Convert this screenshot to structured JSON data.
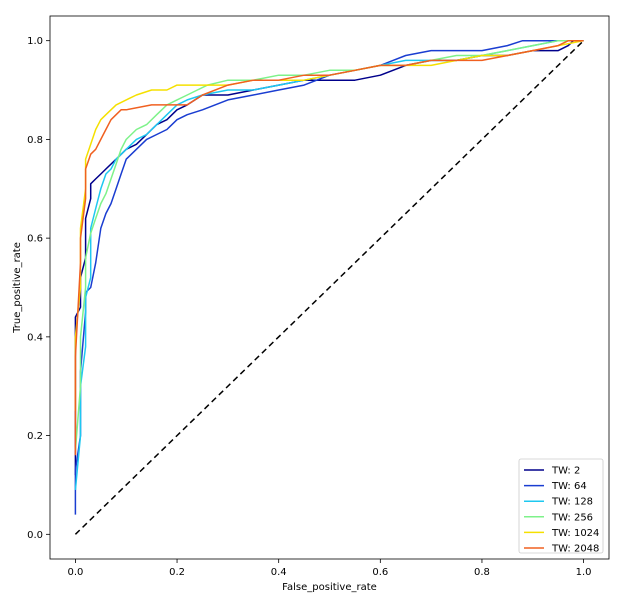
{
  "chart_data": {
    "type": "line",
    "xlabel": "False_positive_rate",
    "ylabel": "True_positive_rate",
    "xlim": [
      -0.05,
      1.05
    ],
    "ylim": [
      -0.05,
      1.05
    ],
    "xticks": [
      "0.0",
      "0.2",
      "0.4",
      "0.6",
      "0.8",
      "1.0"
    ],
    "yticks": [
      "0.0",
      "0.2",
      "0.4",
      "0.6",
      "0.8",
      "1.0"
    ],
    "grid": false,
    "legend_position": "lower right",
    "diagonal": {
      "style": "dashed",
      "color": "#000000",
      "points": [
        [
          0,
          0
        ],
        [
          1,
          1
        ]
      ]
    },
    "series": [
      {
        "name": "TW: 2",
        "color": "#00008b",
        "points": [
          [
            0,
            0.12
          ],
          [
            0,
            0.44
          ],
          [
            0.01,
            0.46
          ],
          [
            0.01,
            0.52
          ],
          [
            0.02,
            0.56
          ],
          [
            0.02,
            0.64
          ],
          [
            0.03,
            0.68
          ],
          [
            0.03,
            0.71
          ],
          [
            0.04,
            0.72
          ],
          [
            0.05,
            0.73
          ],
          [
            0.06,
            0.74
          ],
          [
            0.08,
            0.76
          ],
          [
            0.1,
            0.78
          ],
          [
            0.12,
            0.79
          ],
          [
            0.14,
            0.81
          ],
          [
            0.16,
            0.83
          ],
          [
            0.18,
            0.84
          ],
          [
            0.2,
            0.86
          ],
          [
            0.22,
            0.87
          ],
          [
            0.25,
            0.89
          ],
          [
            0.3,
            0.89
          ],
          [
            0.35,
            0.9
          ],
          [
            0.4,
            0.91
          ],
          [
            0.45,
            0.92
          ],
          [
            0.5,
            0.92
          ],
          [
            0.55,
            0.92
          ],
          [
            0.6,
            0.93
          ],
          [
            0.65,
            0.95
          ],
          [
            0.7,
            0.96
          ],
          [
            0.75,
            0.96
          ],
          [
            0.8,
            0.97
          ],
          [
            0.85,
            0.97
          ],
          [
            0.9,
            0.98
          ],
          [
            0.95,
            0.98
          ],
          [
            0.97,
            0.99
          ],
          [
            0.98,
            1.0
          ],
          [
            1.0,
            1.0
          ]
        ]
      },
      {
        "name": "TW: 64",
        "color": "#1a3dd1",
        "points": [
          [
            0,
            0.04
          ],
          [
            0,
            0.13
          ],
          [
            0.01,
            0.2
          ],
          [
            0.01,
            0.33
          ],
          [
            0.02,
            0.45
          ],
          [
            0.02,
            0.49
          ],
          [
            0.03,
            0.5
          ],
          [
            0.04,
            0.55
          ],
          [
            0.05,
            0.62
          ],
          [
            0.06,
            0.65
          ],
          [
            0.07,
            0.67
          ],
          [
            0.08,
            0.7
          ],
          [
            0.09,
            0.73
          ],
          [
            0.1,
            0.76
          ],
          [
            0.12,
            0.78
          ],
          [
            0.14,
            0.8
          ],
          [
            0.16,
            0.81
          ],
          [
            0.18,
            0.82
          ],
          [
            0.2,
            0.84
          ],
          [
            0.22,
            0.85
          ],
          [
            0.25,
            0.86
          ],
          [
            0.3,
            0.88
          ],
          [
            0.35,
            0.89
          ],
          [
            0.4,
            0.9
          ],
          [
            0.45,
            0.91
          ],
          [
            0.5,
            0.93
          ],
          [
            0.55,
            0.94
          ],
          [
            0.6,
            0.95
          ],
          [
            0.65,
            0.97
          ],
          [
            0.7,
            0.98
          ],
          [
            0.75,
            0.98
          ],
          [
            0.8,
            0.98
          ],
          [
            0.85,
            0.99
          ],
          [
            0.88,
            1.0
          ],
          [
            1.0,
            1.0
          ]
        ]
      },
      {
        "name": "TW: 128",
        "color": "#1ec8f0",
        "points": [
          [
            0,
            0.09
          ],
          [
            0.01,
            0.2
          ],
          [
            0.01,
            0.3
          ],
          [
            0.02,
            0.38
          ],
          [
            0.02,
            0.48
          ],
          [
            0.03,
            0.52
          ],
          [
            0.03,
            0.62
          ],
          [
            0.04,
            0.66
          ],
          [
            0.05,
            0.7
          ],
          [
            0.06,
            0.73
          ],
          [
            0.07,
            0.74
          ],
          [
            0.08,
            0.76
          ],
          [
            0.1,
            0.78
          ],
          [
            0.12,
            0.8
          ],
          [
            0.14,
            0.81
          ],
          [
            0.16,
            0.83
          ],
          [
            0.18,
            0.85
          ],
          [
            0.2,
            0.87
          ],
          [
            0.22,
            0.88
          ],
          [
            0.25,
            0.89
          ],
          [
            0.3,
            0.9
          ],
          [
            0.35,
            0.9
          ],
          [
            0.4,
            0.91
          ],
          [
            0.45,
            0.92
          ],
          [
            0.5,
            0.93
          ],
          [
            0.55,
            0.94
          ],
          [
            0.6,
            0.95
          ],
          [
            0.65,
            0.96
          ],
          [
            0.7,
            0.96
          ],
          [
            0.75,
            0.96
          ],
          [
            0.8,
            0.97
          ],
          [
            0.85,
            0.98
          ],
          [
            0.9,
            0.99
          ],
          [
            0.95,
            1.0
          ],
          [
            1.0,
            1.0
          ]
        ]
      },
      {
        "name": "TW: 256",
        "color": "#7ef28a",
        "points": [
          [
            0,
            0.17
          ],
          [
            0.01,
            0.3
          ],
          [
            0.01,
            0.4
          ],
          [
            0.02,
            0.5
          ],
          [
            0.02,
            0.56
          ],
          [
            0.03,
            0.61
          ],
          [
            0.04,
            0.64
          ],
          [
            0.05,
            0.67
          ],
          [
            0.06,
            0.69
          ],
          [
            0.07,
            0.72
          ],
          [
            0.08,
            0.75
          ],
          [
            0.09,
            0.78
          ],
          [
            0.1,
            0.8
          ],
          [
            0.12,
            0.82
          ],
          [
            0.14,
            0.83
          ],
          [
            0.16,
            0.85
          ],
          [
            0.18,
            0.87
          ],
          [
            0.2,
            0.88
          ],
          [
            0.22,
            0.89
          ],
          [
            0.24,
            0.9
          ],
          [
            0.26,
            0.91
          ],
          [
            0.3,
            0.92
          ],
          [
            0.35,
            0.92
          ],
          [
            0.4,
            0.93
          ],
          [
            0.45,
            0.93
          ],
          [
            0.5,
            0.94
          ],
          [
            0.55,
            0.94
          ],
          [
            0.6,
            0.95
          ],
          [
            0.65,
            0.95
          ],
          [
            0.7,
            0.96
          ],
          [
            0.75,
            0.97
          ],
          [
            0.8,
            0.97
          ],
          [
            0.85,
            0.98
          ],
          [
            0.9,
            0.99
          ],
          [
            0.95,
            1.0
          ],
          [
            1.0,
            1.0
          ]
        ]
      },
      {
        "name": "TW: 1024",
        "color": "#f5e000",
        "points": [
          [
            0,
            0.25
          ],
          [
            0,
            0.4
          ],
          [
            0.01,
            0.5
          ],
          [
            0.01,
            0.62
          ],
          [
            0.02,
            0.7
          ],
          [
            0.02,
            0.76
          ],
          [
            0.03,
            0.79
          ],
          [
            0.04,
            0.82
          ],
          [
            0.05,
            0.84
          ],
          [
            0.06,
            0.85
          ],
          [
            0.07,
            0.86
          ],
          [
            0.08,
            0.87
          ],
          [
            0.1,
            0.88
          ],
          [
            0.12,
            0.89
          ],
          [
            0.15,
            0.9
          ],
          [
            0.18,
            0.9
          ],
          [
            0.2,
            0.91
          ],
          [
            0.25,
            0.91
          ],
          [
            0.3,
            0.91
          ],
          [
            0.35,
            0.92
          ],
          [
            0.4,
            0.92
          ],
          [
            0.45,
            0.92
          ],
          [
            0.5,
            0.93
          ],
          [
            0.55,
            0.94
          ],
          [
            0.6,
            0.95
          ],
          [
            0.65,
            0.95
          ],
          [
            0.7,
            0.95
          ],
          [
            0.75,
            0.96
          ],
          [
            0.8,
            0.97
          ],
          [
            0.85,
            0.97
          ],
          [
            0.9,
            0.98
          ],
          [
            0.95,
            0.99
          ],
          [
            1.0,
            1.0
          ]
        ]
      },
      {
        "name": "TW: 2048",
        "color": "#f06020",
        "points": [
          [
            0,
            0.16
          ],
          [
            0,
            0.36
          ],
          [
            0.01,
            0.55
          ],
          [
            0.01,
            0.6
          ],
          [
            0.02,
            0.68
          ],
          [
            0.02,
            0.74
          ],
          [
            0.03,
            0.77
          ],
          [
            0.04,
            0.78
          ],
          [
            0.05,
            0.8
          ],
          [
            0.06,
            0.82
          ],
          [
            0.07,
            0.84
          ],
          [
            0.08,
            0.85
          ],
          [
            0.09,
            0.86
          ],
          [
            0.1,
            0.86
          ],
          [
            0.15,
            0.87
          ],
          [
            0.2,
            0.87
          ],
          [
            0.22,
            0.87
          ],
          [
            0.25,
            0.89
          ],
          [
            0.3,
            0.91
          ],
          [
            0.35,
            0.92
          ],
          [
            0.4,
            0.92
          ],
          [
            0.45,
            0.93
          ],
          [
            0.5,
            0.93
          ],
          [
            0.55,
            0.94
          ],
          [
            0.6,
            0.95
          ],
          [
            0.65,
            0.95
          ],
          [
            0.7,
            0.96
          ],
          [
            0.75,
            0.96
          ],
          [
            0.8,
            0.96
          ],
          [
            0.85,
            0.97
          ],
          [
            0.9,
            0.98
          ],
          [
            0.95,
            0.99
          ],
          [
            0.97,
            1.0
          ],
          [
            1.0,
            1.0
          ]
        ]
      }
    ]
  }
}
